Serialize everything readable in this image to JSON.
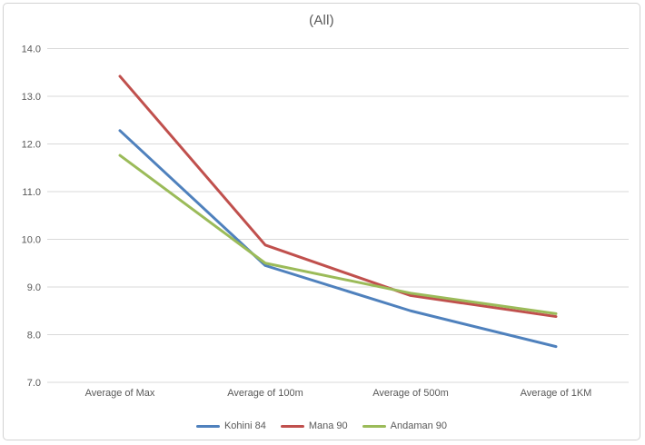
{
  "chart_data": {
    "type": "line",
    "title": "(All)",
    "categories": [
      "Average of Max",
      "Average of 100m",
      "Average of 500m",
      "Average of 1KM"
    ],
    "series": [
      {
        "name": "Kohini 84",
        "color": "#4F81BD",
        "values": [
          12.28,
          9.45,
          8.5,
          7.75
        ]
      },
      {
        "name": "Mana 90",
        "color": "#C0504D",
        "values": [
          13.42,
          9.88,
          8.82,
          8.38
        ]
      },
      {
        "name": "Andaman 90",
        "color": "#9BBB59",
        "values": [
          11.76,
          9.5,
          8.87,
          8.44
        ]
      }
    ],
    "xlabel": "",
    "ylabel": "",
    "ylim": [
      7.0,
      14.0
    ],
    "ytick_step": 1.0,
    "ytick_labels": [
      "14.0",
      "13.0",
      "12.0",
      "11.0",
      "10.0",
      "9.0",
      "8.0",
      "7.0"
    ],
    "grid": true,
    "legend_position": "bottom",
    "colors": {
      "axis_text": "#595959",
      "gridline": "#D9D9D9",
      "frame_border": "#D2D2D2",
      "background": "#FFFFFF"
    }
  }
}
